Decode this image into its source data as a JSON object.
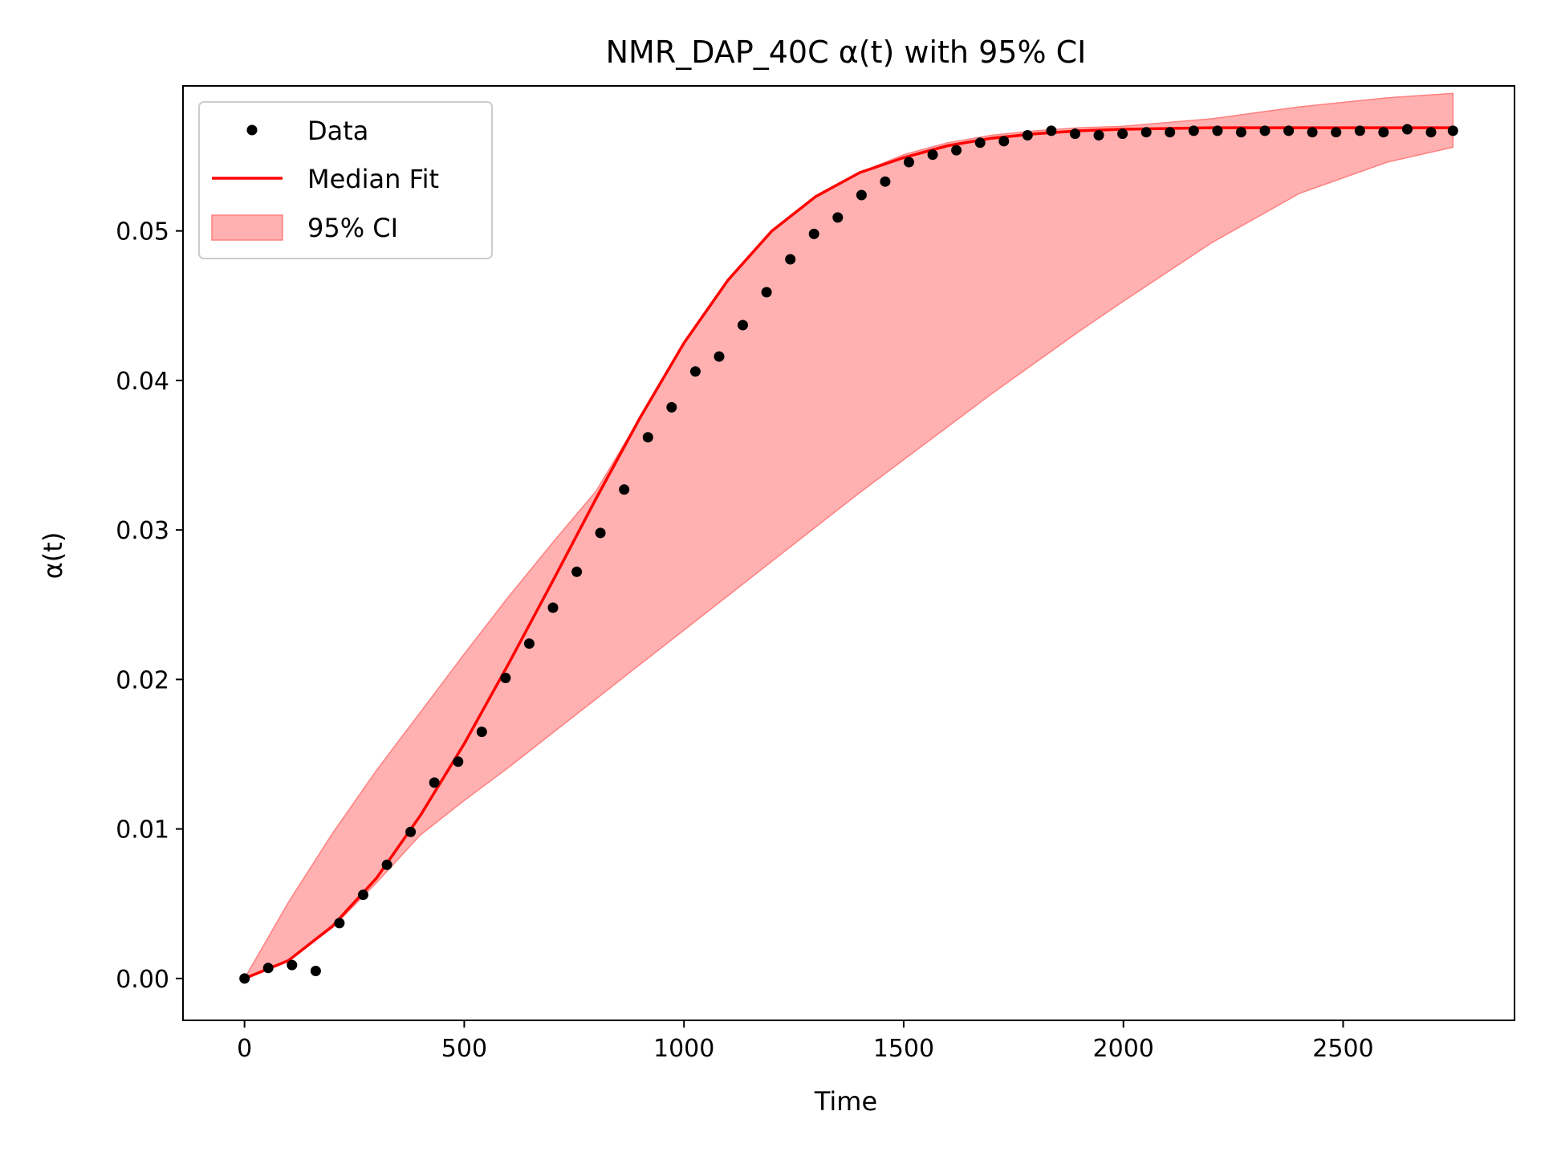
{
  "chart_data": {
    "type": "line",
    "title": "NMR_DAP_40C α(t) with 95% CI",
    "xlabel": "Time",
    "ylabel": "α(t)",
    "xlim": [
      -140,
      2890
    ],
    "ylim": [
      -0.0028,
      0.0597
    ],
    "xticks": [
      0,
      500,
      1000,
      1500,
      2000,
      2500
    ],
    "xtick_labels": [
      "0",
      "500",
      "1000",
      "1500",
      "2000",
      "2500"
    ],
    "yticks": [
      0.0,
      0.01,
      0.02,
      0.03,
      0.04,
      0.05
    ],
    "ytick_labels": [
      "0.00",
      "0.01",
      "0.02",
      "0.03",
      "0.04",
      "0.05"
    ],
    "grid": false,
    "legend": {
      "placement": "top-left",
      "entries": [
        "Data",
        "Median Fit",
        "95% CI"
      ]
    },
    "colors": {
      "data": "#000000",
      "fit": "#ff0000",
      "ci_fill": "#ffb0b0",
      "ci_edge": "#ff8080"
    },
    "series": [
      {
        "name": "Data",
        "kind": "scatter",
        "x": [
          0,
          54,
          108,
          162,
          216,
          270,
          324,
          378,
          432,
          486,
          540,
          594,
          648,
          702,
          756,
          810,
          864,
          918,
          972,
          1026,
          1080,
          1134,
          1188,
          1242,
          1296,
          1350,
          1404,
          1458,
          1512,
          1566,
          1620,
          1674,
          1728,
          1782,
          1836,
          1890,
          1944,
          1998,
          2052,
          2106,
          2160,
          2214,
          2268,
          2322,
          2376,
          2430,
          2484,
          2538,
          2592,
          2646,
          2700,
          2750
        ],
        "y": [
          0.0,
          0.0007,
          0.0009,
          0.0005,
          0.0037,
          0.0056,
          0.0076,
          0.0098,
          0.0131,
          0.0145,
          0.0165,
          0.0201,
          0.0224,
          0.0248,
          0.0272,
          0.0298,
          0.0327,
          0.0362,
          0.0382,
          0.0406,
          0.0416,
          0.0437,
          0.0459,
          0.0481,
          0.0498,
          0.0509,
          0.0524,
          0.0533,
          0.0546,
          0.0551,
          0.0554,
          0.0559,
          0.056,
          0.0564,
          0.0567,
          0.0565,
          0.0564,
          0.0565,
          0.0566,
          0.0566,
          0.0567,
          0.0567,
          0.0566,
          0.0567,
          0.0567,
          0.0566,
          0.0566,
          0.0567,
          0.0566,
          0.0568,
          0.0566,
          0.0567
        ]
      },
      {
        "name": "Median Fit",
        "kind": "line",
        "x": [
          0,
          100,
          200,
          300,
          400,
          500,
          600,
          700,
          800,
          900,
          1000,
          1100,
          1200,
          1300,
          1400,
          1500,
          1600,
          1700,
          1800,
          1900,
          2000,
          2200,
          2400,
          2600,
          2750
        ],
        "y": [
          0.0,
          0.0012,
          0.0035,
          0.0067,
          0.0109,
          0.0157,
          0.021,
          0.0265,
          0.0321,
          0.0375,
          0.0425,
          0.0467,
          0.05,
          0.0523,
          0.0539,
          0.0549,
          0.0557,
          0.0562,
          0.0565,
          0.0567,
          0.0568,
          0.0569,
          0.0569,
          0.0569,
          0.0569
        ]
      },
      {
        "name": "95% CI",
        "kind": "band",
        "x": [
          0,
          100,
          200,
          300,
          400,
          500,
          600,
          700,
          800,
          900,
          1000,
          1100,
          1200,
          1300,
          1400,
          1500,
          1600,
          1700,
          1800,
          1900,
          2000,
          2200,
          2400,
          2600,
          2750
        ],
        "lower": [
          0.0,
          0.0012,
          0.0034,
          0.0064,
          0.0096,
          0.0119,
          0.0141,
          0.0164,
          0.0187,
          0.021,
          0.0233,
          0.0256,
          0.0279,
          0.0302,
          0.0325,
          0.0347,
          0.0369,
          0.0391,
          0.0412,
          0.0433,
          0.0453,
          0.0492,
          0.0525,
          0.0546,
          0.0556
        ],
        "upper": [
          0.0,
          0.0051,
          0.0097,
          0.0139,
          0.0178,
          0.0217,
          0.0255,
          0.0291,
          0.0326,
          0.0375,
          0.0425,
          0.0467,
          0.05,
          0.0523,
          0.0539,
          0.0551,
          0.0559,
          0.0564,
          0.0567,
          0.0569,
          0.057,
          0.0575,
          0.0583,
          0.0589,
          0.0592
        ]
      }
    ]
  }
}
